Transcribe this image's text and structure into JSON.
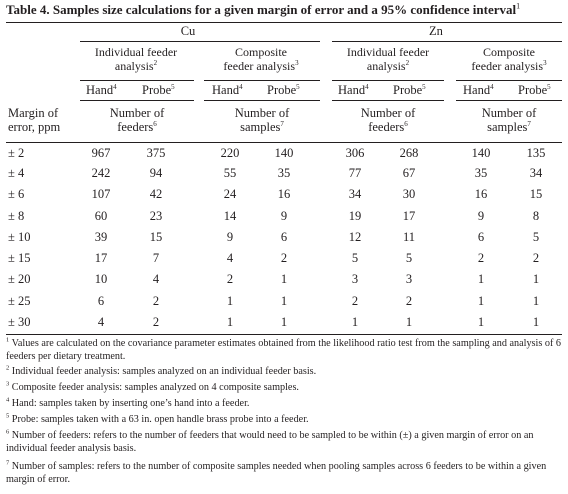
{
  "caption": {
    "text": "Table 4. Samples size calculations for a given margin of error and a 95% confidence interval",
    "sup": "1"
  },
  "groups": [
    {
      "label": "Cu"
    },
    {
      "label": "Zn"
    }
  ],
  "subgroups": [
    {
      "line1": "Individual feeder",
      "line2": "analysis",
      "sup": "2"
    },
    {
      "line1": "Composite",
      "line2": "feeder analysis",
      "sup": "3"
    },
    {
      "line1": "Individual feeder",
      "line2": "analysis",
      "sup": "2"
    },
    {
      "line1": "Composite",
      "line2": "feeder analysis",
      "sup": "3"
    }
  ],
  "method_headers": [
    {
      "hand": "Hand",
      "hand_sup": "4",
      "probe": "Probe",
      "probe_sup": "5"
    },
    {
      "hand": "Hand",
      "hand_sup": "4",
      "probe": "Probe",
      "probe_sup": "5"
    },
    {
      "hand": "Hand",
      "hand_sup": "4",
      "probe": "Probe",
      "probe_sup": "5"
    },
    {
      "hand": "Hand",
      "hand_sup": "4",
      "probe": "Probe",
      "probe_sup": "5"
    }
  ],
  "row_header": {
    "line1": "Margin of",
    "line2": "error, ppm"
  },
  "unit_headers": [
    {
      "line1": "Number of",
      "line2": "feeders",
      "sup": "6"
    },
    {
      "line1": "Number of",
      "line2": "samples",
      "sup": "7"
    },
    {
      "line1": "Number of",
      "line2": "feeders",
      "sup": "6"
    },
    {
      "line1": "Number of",
      "line2": "samples",
      "sup": "7"
    }
  ],
  "rows": [
    {
      "margin": "± 2",
      "values": [
        "967",
        "375",
        "220",
        "140",
        "306",
        "268",
        "140",
        "135"
      ]
    },
    {
      "margin": "± 4",
      "values": [
        "242",
        "94",
        "55",
        "35",
        "77",
        "67",
        "35",
        "34"
      ]
    },
    {
      "margin": "± 6",
      "values": [
        "107",
        "42",
        "24",
        "16",
        "34",
        "30",
        "16",
        "15"
      ]
    },
    {
      "margin": "± 8",
      "values": [
        "60",
        "23",
        "14",
        "9",
        "19",
        "17",
        "9",
        "8"
      ]
    },
    {
      "margin": "± 10",
      "values": [
        "39",
        "15",
        "9",
        "6",
        "12",
        "11",
        "6",
        "5"
      ]
    },
    {
      "margin": "± 15",
      "values": [
        "17",
        "7",
        "4",
        "2",
        "5",
        "5",
        "2",
        "2"
      ]
    },
    {
      "margin": "± 20",
      "values": [
        "10",
        "4",
        "2",
        "1",
        "3",
        "3",
        "1",
        "1"
      ]
    },
    {
      "margin": "± 25",
      "values": [
        "6",
        "2",
        "1",
        "1",
        "2",
        "2",
        "1",
        "1"
      ]
    },
    {
      "margin": "± 30",
      "values": [
        "4",
        "2",
        "1",
        "1",
        "1",
        "1",
        "1",
        "1"
      ]
    }
  ],
  "footnotes": [
    {
      "sup": "1",
      "text": "Values are calculated on the covariance parameter estimates obtained from the likelihood ratio test from the sampling and analysis of 6 feeders per dietary treatment."
    },
    {
      "sup": "2",
      "text": "Individual feeder analysis: samples analyzed on an individual feeder basis."
    },
    {
      "sup": "3",
      "text": "Composite feeder analysis: samples analyzed on 4 composite samples."
    },
    {
      "sup": "4",
      "text": "Hand: samples taken by inserting one’s hand into a feeder."
    },
    {
      "sup": "5",
      "text": "Probe: samples taken with a 63 in. open handle brass probe into a feeder."
    },
    {
      "sup": "6",
      "text": "Number of feeders: refers to the number of feeders that would need to be sampled to be within (±) a given margin of error on an individual feeder analysis basis."
    },
    {
      "sup": "7",
      "text": "Number of samples: refers to the number of composite samples needed when pooling samples across 6 feeders to be within a given margin of error."
    }
  ]
}
